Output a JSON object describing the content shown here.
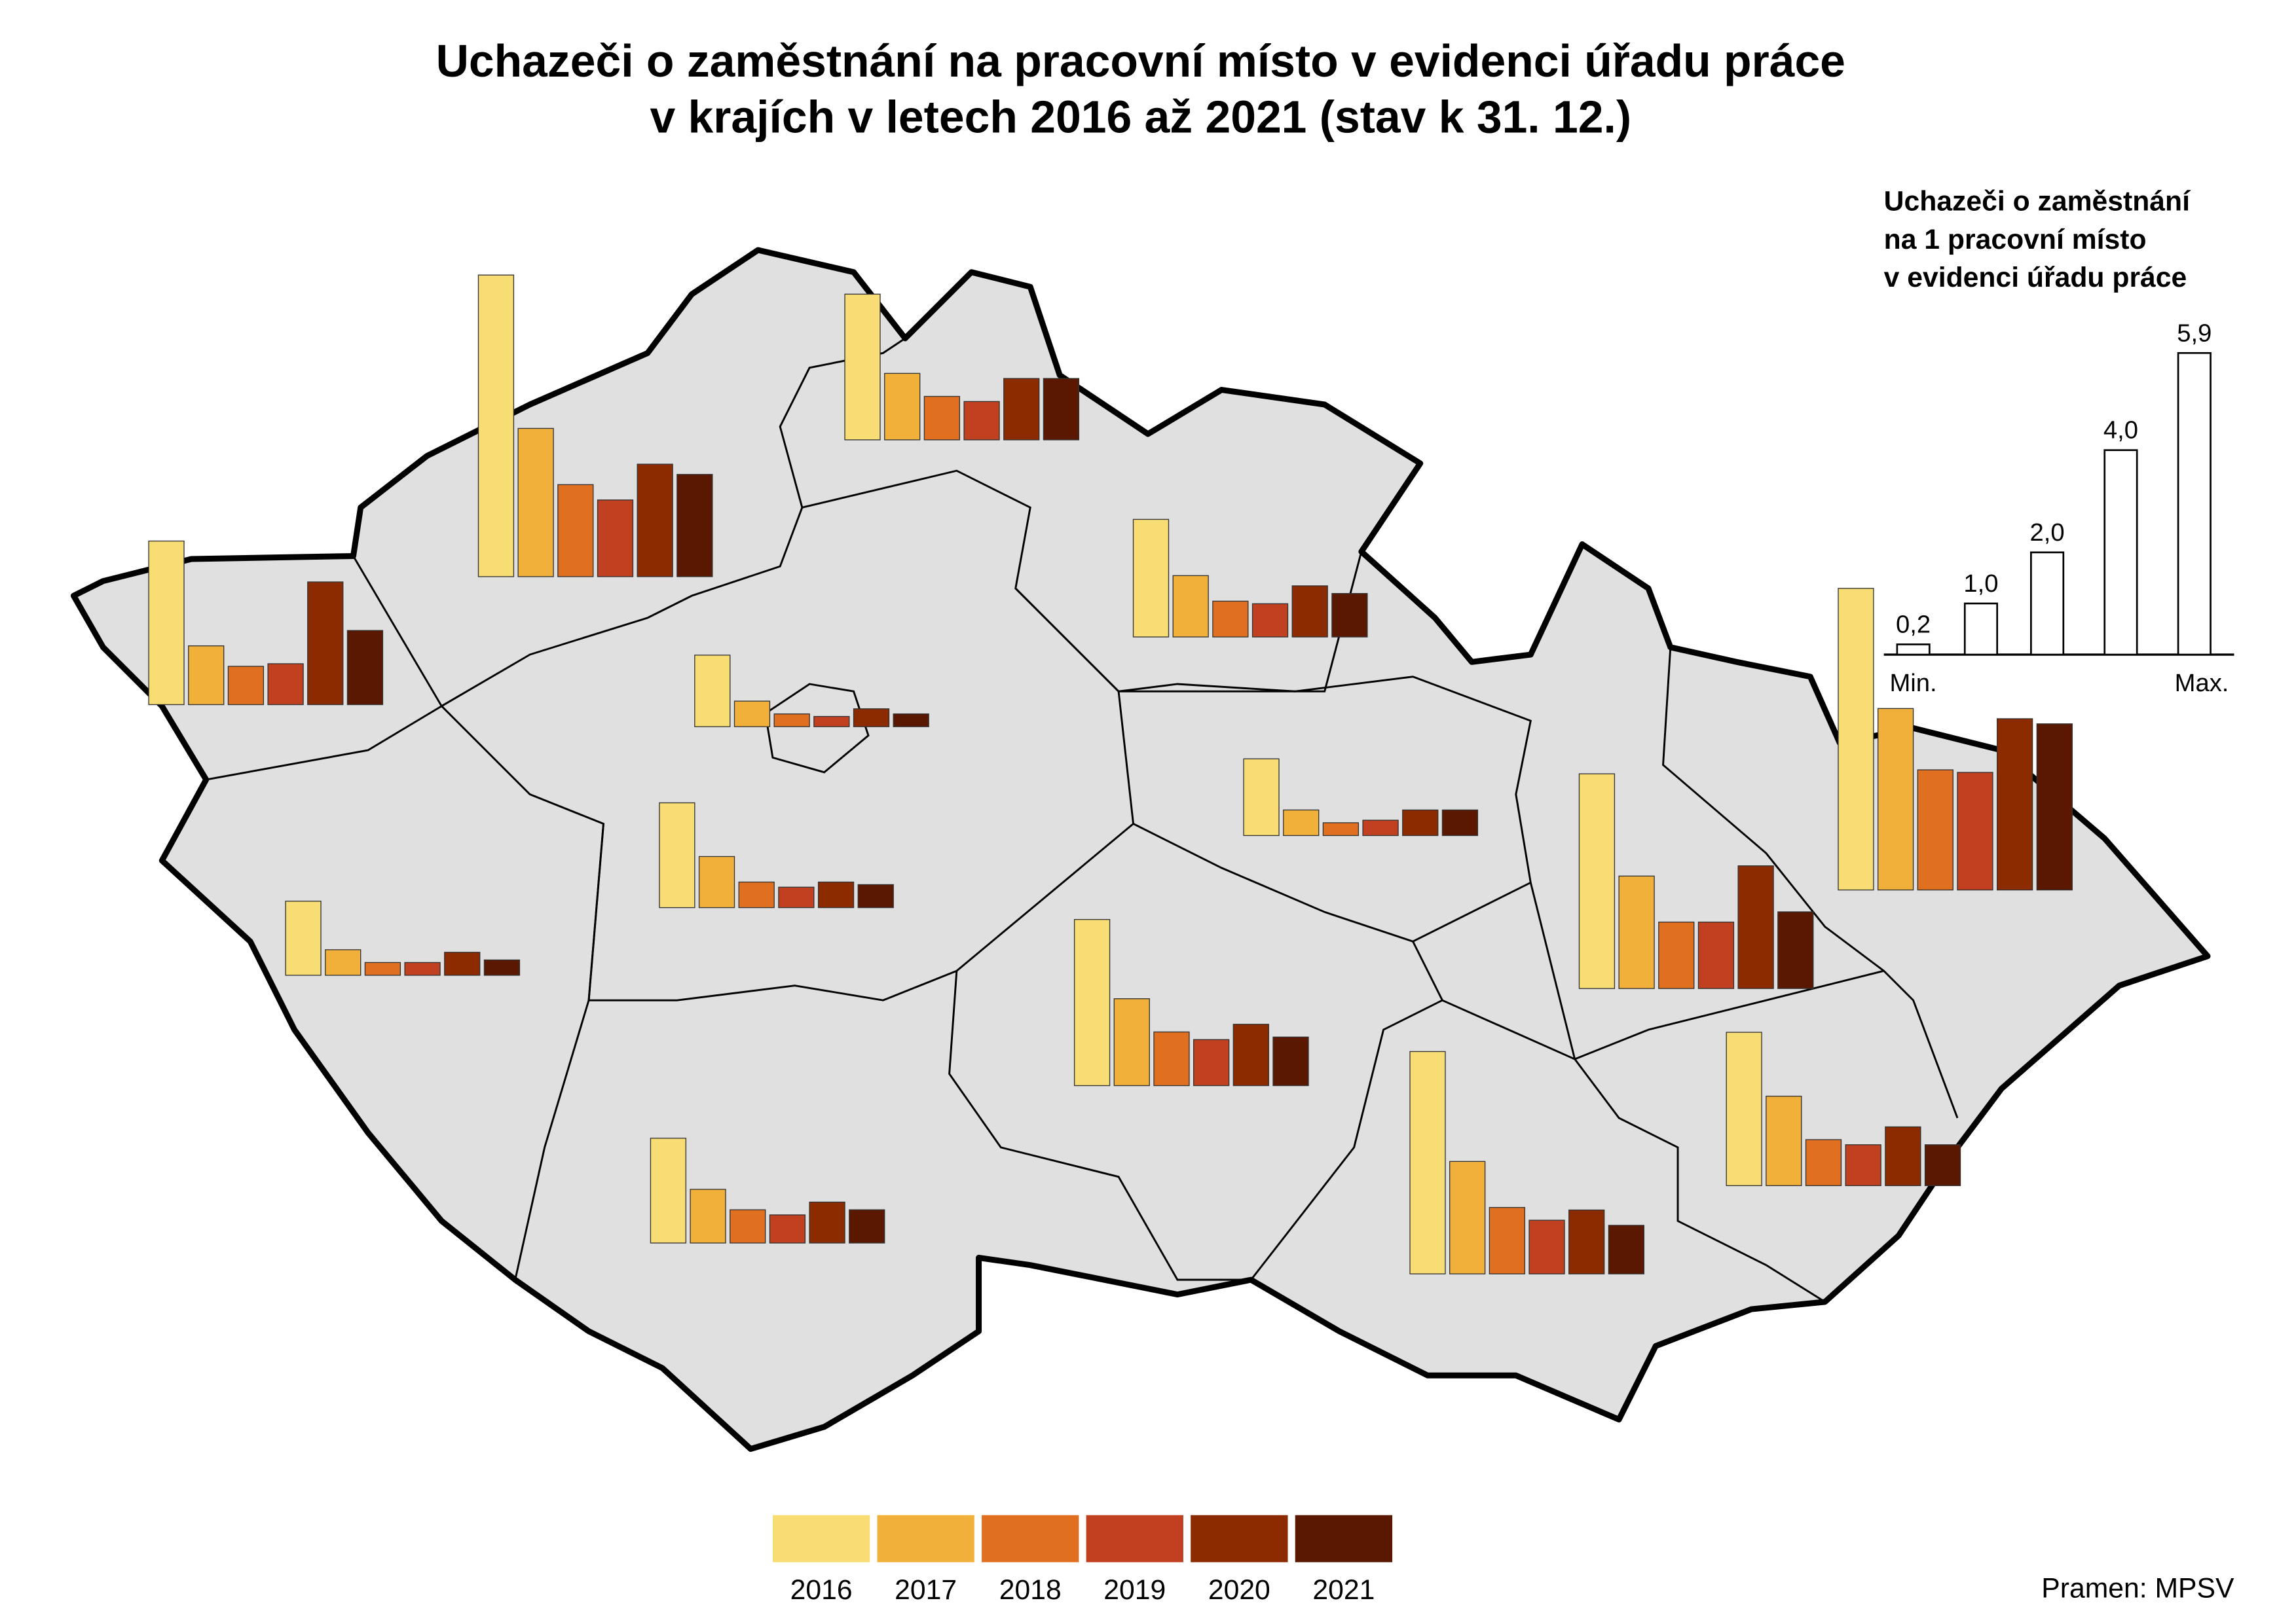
{
  "chart_data": {
    "type": "bar",
    "title": [
      "Uchazeči o zaměstnání na pracovní místo v evidenci úřadu práce",
      "v krajích v letech 2016 až 2021 (stav k 31. 12.)"
    ],
    "series": [
      {
        "name": "2016",
        "color": "#f8dc74",
        "values": [
          3.2,
          5.9,
          2.85,
          2.3,
          1.4,
          2.05,
          1.45,
          1.5,
          3.25,
          2.05,
          4.2,
          5.9,
          4.35,
          3.0
        ]
      },
      {
        "name": "2017",
        "color": "#f0b03a",
        "values": [
          1.15,
          2.9,
          1.3,
          1.2,
          0.5,
          1.0,
          0.5,
          0.5,
          1.7,
          1.05,
          2.2,
          3.55,
          2.2,
          1.75
        ]
      },
      {
        "name": "2018",
        "color": "#e07020",
        "values": [
          0.75,
          1.8,
          0.85,
          0.7,
          0.25,
          0.5,
          0.25,
          0.25,
          1.05,
          0.65,
          1.3,
          2.35,
          1.3,
          0.9
        ]
      },
      {
        "name": "2019",
        "color": "#c04020",
        "values": [
          0.8,
          1.5,
          0.75,
          0.65,
          0.2,
          0.4,
          0.25,
          0.3,
          0.9,
          0.55,
          1.3,
          2.3,
          1.05,
          0.8
        ]
      },
      {
        "name": "2020",
        "color": "#8c2a00",
        "values": [
          2.4,
          2.2,
          1.2,
          1.0,
          0.35,
          0.5,
          0.45,
          0.5,
          1.2,
          0.8,
          2.4,
          3.35,
          1.25,
          1.15
        ]
      },
      {
        "name": "2021",
        "color": "#5a1800",
        "values": [
          1.45,
          2.0,
          1.2,
          0.85,
          0.25,
          0.45,
          0.3,
          0.5,
          0.95,
          0.65,
          1.5,
          3.25,
          0.95,
          0.8
        ]
      }
    ],
    "key": {
      "title": [
        "Uchazeči o zaměstnání",
        "na 1 pracovní místo",
        "v evidenci úřadu práce"
      ],
      "values": [
        0.2,
        1.0,
        2.0,
        4.0,
        5.9
      ],
      "value_labels": [
        "0,2",
        "1,0",
        "2,0",
        "4,0",
        "5,9"
      ],
      "min_label": "Min.",
      "max_label": "Max."
    },
    "source": "Pramen: MPSV"
  }
}
